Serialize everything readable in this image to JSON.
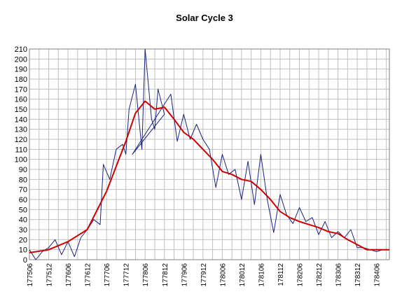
{
  "chart_data": {
    "type": "line",
    "title": "Solar Cycle 3",
    "xlabel": "",
    "ylabel": "",
    "x_range": [
      "177506",
      "178410"
    ],
    "ylim": [
      0,
      210
    ],
    "y_ticks": [
      0,
      10,
      20,
      30,
      40,
      50,
      60,
      70,
      80,
      90,
      100,
      110,
      120,
      130,
      140,
      150,
      160,
      170,
      180,
      190,
      200,
      210
    ],
    "x_ticks": [
      "177506",
      "177512",
      "177606",
      "177612",
      "177706",
      "177712",
      "177806",
      "177812",
      "177906",
      "177912",
      "178006",
      "178012",
      "178106",
      "178112",
      "178206",
      "178212",
      "178306",
      "178312",
      "178406"
    ],
    "grid": true,
    "legend": "none",
    "series": [
      {
        "role": "monthly",
        "color": "#1a237e",
        "x": [
          "177506",
          "177508",
          "177510",
          "177512",
          "177602",
          "177604",
          "177606",
          "177608",
          "177610",
          "177612",
          "177702",
          "177704",
          "177705",
          "177707",
          "177709",
          "177711",
          "177712",
          "177801",
          "177803",
          "177805",
          "177806",
          "177808",
          "177809",
          "177810",
          "177812",
          "177802b",
          "177902",
          "177904",
          "177906",
          "177908",
          "177910",
          "177912",
          "178002",
          "178004",
          "178006",
          "178008",
          "178010",
          "178012",
          "178102",
          "178104",
          "178106",
          "178108",
          "178110",
          "178112",
          "178202",
          "178204",
          "178206",
          "178208",
          "178210",
          "178212",
          "178302",
          "178304",
          "178306",
          "178308",
          "178310",
          "178312",
          "178402",
          "178404",
          "178406",
          "178408",
          "178410"
        ],
        "values_note": "",
        "y": [
          10,
          0,
          8,
          12,
          20,
          5,
          18,
          3,
          22,
          30,
          40,
          35,
          95,
          80,
          110,
          115,
          105,
          150,
          175,
          110,
          215,
          140,
          130,
          170,
          145,
          105,
          165,
          118,
          145,
          120,
          135,
          120,
          110,
          72,
          105,
          85,
          90,
          60,
          98,
          55,
          105,
          60,
          27,
          65,
          45,
          36,
          52,
          38,
          42,
          25,
          38,
          22,
          28,
          22,
          30,
          12,
          12,
          10,
          8,
          10,
          10
        ]
      },
      {
        "role": "smoothed",
        "color": "#cc0000",
        "x": [
          "177506",
          "177512",
          "177606",
          "177612",
          "177706",
          "177712",
          "177803",
          "177806",
          "177809",
          "177812",
          "177903",
          "177906",
          "177909",
          "177912",
          "178003",
          "178006",
          "178009",
          "178012",
          "178103",
          "178106",
          "178109",
          "178112",
          "178203",
          "178206",
          "178209",
          "178212",
          "178303",
          "178306",
          "178309",
          "178312",
          "178403",
          "178406",
          "178410"
        ],
        "y": [
          7,
          10,
          18,
          30,
          68,
          118,
          146,
          158,
          150,
          152,
          140,
          127,
          120,
          110,
          100,
          88,
          85,
          80,
          78,
          70,
          60,
          48,
          42,
          38,
          35,
          32,
          28,
          26,
          20,
          15,
          10,
          10,
          10
        ]
      }
    ]
  }
}
